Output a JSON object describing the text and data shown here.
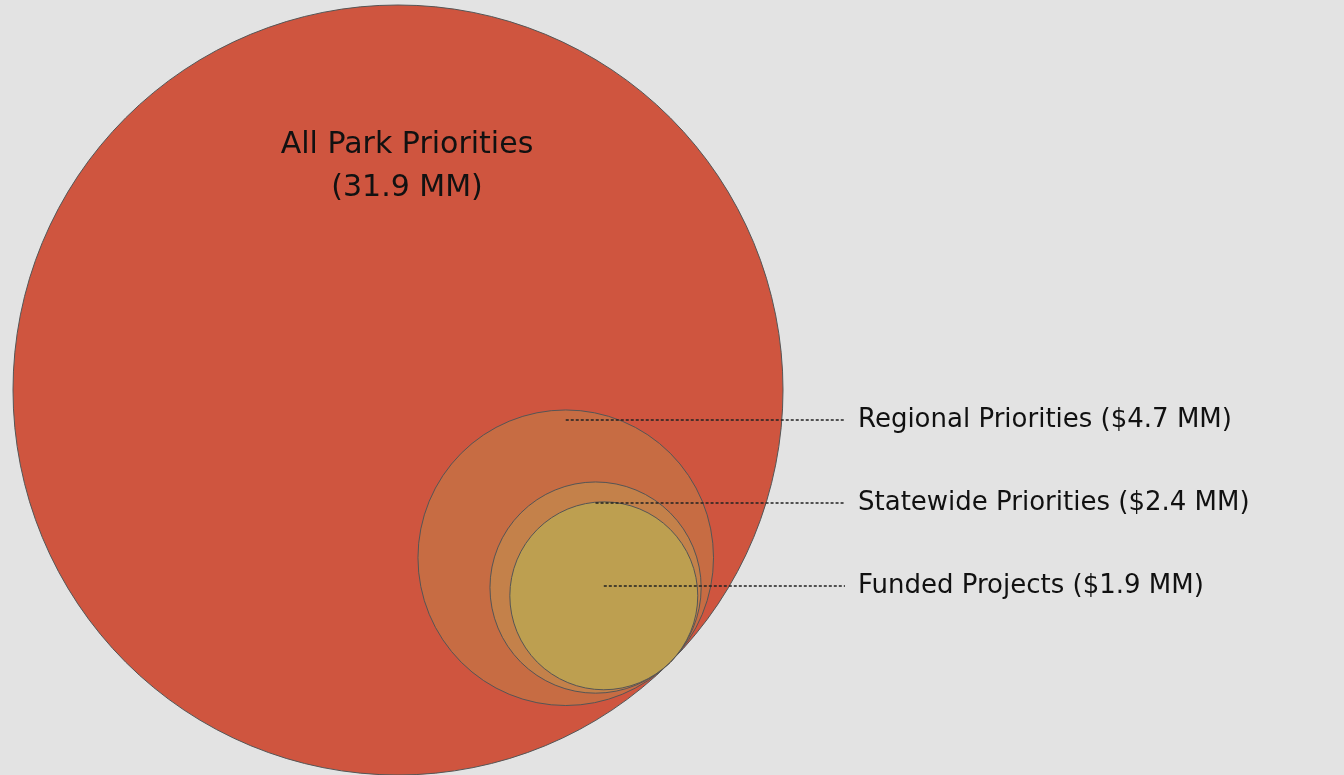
{
  "chart_data": {
    "type": "other",
    "categories": [
      "All Park Priorities",
      "Regional Priorities",
      "Statewide Priorities",
      "Funded Projects"
    ],
    "values": [
      31.9,
      4.7,
      2.4,
      1.9
    ],
    "value_labels": [
      "(31.9 MM)",
      "($4.7 MM)",
      "($2.4 MM)",
      "($1.9 MM)"
    ],
    "colors": [
      "#cf553f",
      "#c76c43",
      "#c4814a",
      "#bd9f50"
    ]
  }
}
